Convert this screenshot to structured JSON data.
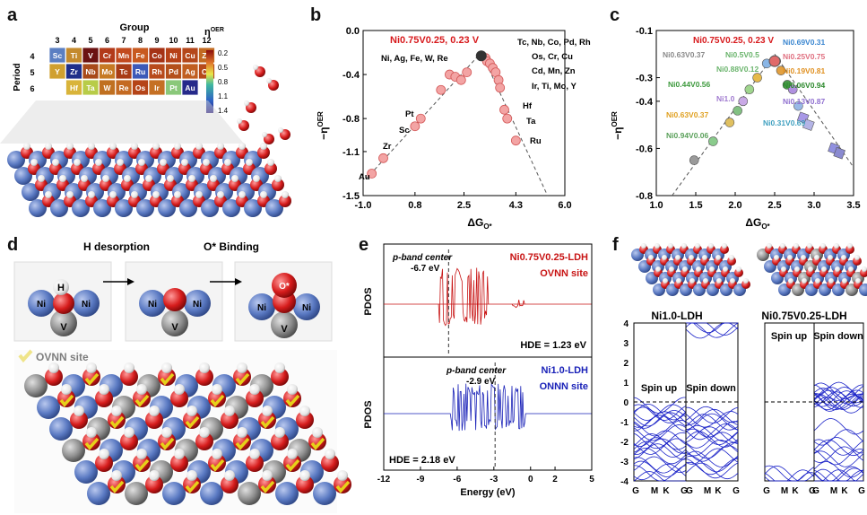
{
  "panel_letters": {
    "a": "a",
    "b": "b",
    "c": "c",
    "d": "d",
    "e": "e",
    "f": "f"
  },
  "colors": {
    "red_label": "#d7191c",
    "blue_label": "#1a22b8",
    "marker_red": "#f3a4a4",
    "marker_edge": "#d35757",
    "dash": "#555555"
  },
  "panel_a": {
    "group_title": "Group",
    "period_title": "Period",
    "eta_title": "η",
    "eta_sup": "OER",
    "group_numbers": [
      "3",
      "4",
      "5",
      "6",
      "7",
      "8",
      "9",
      "10",
      "11",
      "12"
    ],
    "period_numbers": [
      "4",
      "5",
      "6"
    ],
    "rows": [
      [
        {
          "el": "Sc",
          "c": "#5b7fc2"
        },
        {
          "el": "Ti",
          "c": "#c48a2e"
        },
        {
          "el": "V",
          "c": "#6b1212"
        },
        {
          "el": "Cr",
          "c": "#b23a1a"
        },
        {
          "el": "Mn",
          "c": "#c24a1e"
        },
        {
          "el": "Fe",
          "c": "#c85a20"
        },
        {
          "el": "Co",
          "c": "#a53216"
        },
        {
          "el": "Ni",
          "c": "#b64118"
        },
        {
          "el": "Cu",
          "c": "#b4471a"
        },
        {
          "el": "Zn",
          "c": "#c26a22"
        }
      ],
      [
        {
          "el": "Y",
          "c": "#d0a030"
        },
        {
          "el": "Zr",
          "c": "#1f2f8a"
        },
        {
          "el": "Nb",
          "c": "#a84a1a"
        },
        {
          "el": "Mo",
          "c": "#c67a24"
        },
        {
          "el": "Tc",
          "c": "#a83c16"
        },
        {
          "el": "Ru",
          "c": "#3c5ab8"
        },
        {
          "el": "Rh",
          "c": "#b84a1c"
        },
        {
          "el": "Pd",
          "c": "#b4501c"
        },
        {
          "el": "Ag",
          "c": "#c05e20"
        },
        {
          "el": "Cd",
          "c": "#b64a1a"
        }
      ],
      [
        {
          "el": "",
          "c": "#ffffff"
        },
        {
          "el": "Hf",
          "c": "#d9b43a"
        },
        {
          "el": "Ta",
          "c": "#b8cc48"
        },
        {
          "el": "W",
          "c": "#c07020"
        },
        {
          "el": "Re",
          "c": "#c46a22"
        },
        {
          "el": "Os",
          "c": "#b54418"
        },
        {
          "el": "Ir",
          "c": "#c57024"
        },
        {
          "el": "Pt",
          "c": "#8ac87a"
        },
        {
          "el": "Au",
          "c": "#262a8a"
        },
        {
          "el": "",
          "c": "#ffffff"
        }
      ]
    ],
    "colorbar_ticks": [
      "0.2",
      "0.5",
      "0.8",
      "1.1",
      "1.4"
    ]
  },
  "panel_b": {
    "highlight_label": "Ni0.75V0.25, 0.23 V",
    "ylabel": "−η",
    "ylabel_sup": "OER",
    "xlabel": "ΔG",
    "xlabel_sub": "O*",
    "annotations": [
      "Ni, Ag, Fe, W, Re",
      "Tc, Nb, Co, Pd, Rh",
      "Os, Cr, Cu",
      "Cd, Mn, Zn",
      "Ir, Ti, Mo, Y",
      "Pt",
      "Sc",
      "Zr",
      "Au",
      "Hf",
      "Ta",
      "Ru"
    ]
  },
  "panel_c": {
    "highlight_label": "Ni0.75V0.25, 0.23 V",
    "ylabel": "−η",
    "ylabel_sup": "OER",
    "xlabel": "ΔG",
    "xlabel_sub": "O*",
    "labels": [
      "Ni0.63V0.37",
      "Ni0.5V0.5",
      "Ni0.88V0.12",
      "Ni0.44V0.56",
      "Ni1.0",
      "Ni0.63V0.37",
      "Ni0.94V0.06",
      "Ni0.69V0.31",
      "Ni0.25V0.75",
      "Ni0.19V0.81",
      "Ni0.06V0.94",
      "Ni0.13V0.87",
      "Ni0.31V0.69"
    ]
  },
  "panel_d": {
    "h_desorption": "H desorption",
    "o_binding": "O* Binding",
    "site_label": "OVNN site",
    "atoms": {
      "h": "H",
      "ni": "Ni",
      "v": "V",
      "o": "O*"
    }
  },
  "panel_e": {
    "top_title": "Ni0.75V0.25-LDH",
    "top_site": "OVNN site",
    "top_center_label": "p-band center",
    "top_center_value": "-6.7 eV",
    "top_hde": "HDE = 1.23 eV",
    "bottom_title": "Ni1.0-LDH",
    "bottom_site": "ONNN site",
    "bottom_center_label": "p-band center",
    "bottom_center_value": "-2.9 eV",
    "bottom_hde": "HDE = 2.18 eV",
    "ylabel": "PDOS",
    "xlabel": "Energy (eV)"
  },
  "panel_f": {
    "left_title": "Ni1.0-LDH",
    "right_title": "Ni0.75V0.25-LDH",
    "spin_up": "Spin up",
    "spin_down": "Spin down",
    "kpoints": [
      "G",
      "M",
      "K",
      "G"
    ]
  },
  "chart_data": [
    {
      "type": "scatter",
      "title": "Panel b",
      "xlabel": "ΔG_O*",
      "ylabel": "−η^OER",
      "xlim": [
        -1.0,
        6.0
      ],
      "ylim": [
        -1.5,
        0.0
      ],
      "xticks": [
        "-1.0",
        "0.8",
        "2.5",
        "4.3",
        "6.0"
      ],
      "yticks": [
        "0.0",
        "-0.4",
        "-0.8",
        "-1.1",
        "-1.5"
      ],
      "x": [
        -0.7,
        -0.3,
        0.8,
        1.0,
        1.7,
        2.0,
        2.2,
        2.4,
        2.6,
        3.1,
        3.25,
        3.3,
        3.4,
        3.5,
        3.6,
        3.7,
        3.75,
        3.9,
        4.0,
        4.3
      ],
      "y": [
        -1.3,
        -1.16,
        -0.87,
        -0.8,
        -0.54,
        -0.4,
        -0.42,
        -0.45,
        -0.38,
        -0.23,
        -0.25,
        -0.28,
        -0.3,
        -0.34,
        -0.38,
        -0.45,
        -0.52,
        -0.72,
        -0.8,
        -1.0
      ],
      "highlight": {
        "x": 3.1,
        "y": -0.23,
        "label": "Ni0.75V0.25, 0.23 V"
      }
    },
    {
      "type": "scatter",
      "title": "Panel c",
      "xlabel": "ΔG_O*",
      "ylabel": "−η^OER",
      "xlim": [
        1.0,
        3.5
      ],
      "ylim": [
        -0.8,
        -0.1
      ],
      "xticks": [
        "1.0",
        "1.5",
        "2.0",
        "2.5",
        "3.0",
        "3.5"
      ],
      "yticks": [
        "-0.1",
        "-0.3",
        "-0.4",
        "-0.6",
        "-0.8"
      ],
      "x": [
        1.48,
        1.72,
        1.93,
        2.03,
        2.1,
        2.18,
        2.28,
        2.4,
        2.52,
        2.58,
        2.66,
        2.73,
        2.8,
        2.86,
        2.93,
        3.25,
        3.32
      ],
      "y": [
        -0.65,
        -0.57,
        -0.49,
        -0.44,
        -0.4,
        -0.35,
        -0.3,
        -0.24,
        -0.23,
        -0.27,
        -0.33,
        -0.35,
        -0.42,
        -0.47,
        -0.5,
        -0.6,
        -0.62
      ],
      "highlight": {
        "x": 2.5,
        "y": -0.23,
        "label": "Ni0.75V0.25, 0.23 V"
      }
    },
    {
      "type": "line",
      "title": "Panel e PDOS",
      "xlabel": "Energy (eV)",
      "ylabel": "PDOS",
      "xlim": [
        -12,
        5
      ],
      "xticks": [
        "-12",
        "-9",
        "-6",
        "-3",
        "0",
        "2",
        "5"
      ],
      "series": [
        {
          "name": "Ni0.75V0.25-LDH OVNN site",
          "p_band_center": -6.7
        },
        {
          "name": "Ni1.0-LDH ONNN site",
          "p_band_center": -2.9
        }
      ]
    },
    {
      "type": "line",
      "title": "Panel f band structures",
      "ylim": [
        -4,
        4
      ],
      "yticks": [
        "4",
        "3",
        "2",
        "1",
        "0",
        "-1",
        "-2",
        "-3",
        "-4"
      ],
      "xticks": [
        "G",
        "M",
        "K",
        "G"
      ]
    }
  ]
}
